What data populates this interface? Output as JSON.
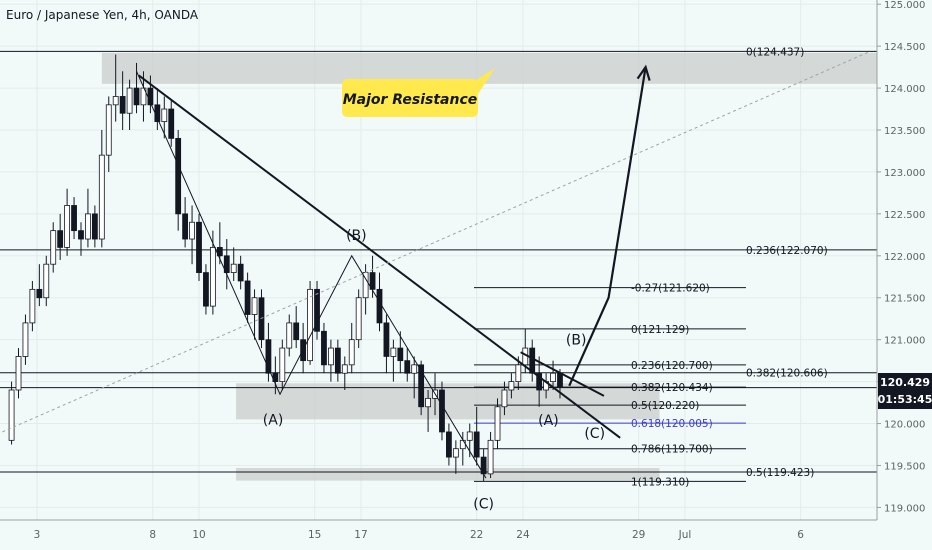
{
  "header": {
    "title": "Euro / Japanese Yen, 4h, OANDA"
  },
  "price_badge": {
    "price": "120.429",
    "countdown": "01:53:45",
    "color": "#131722"
  },
  "callout": {
    "text": "Major Resistance",
    "bg": "#ffe94d"
  },
  "colors": {
    "up": "#ffffff",
    "down": "#131722",
    "zone": "#c9cdcc",
    "fib_highlight": "#3d3dcf"
  },
  "chart_data": {
    "type": "candlestick",
    "instrument": "EURJPY",
    "timeframe": "4h",
    "source": "OANDA",
    "y_axis": {
      "ticks": [
        "125.000",
        "124.500",
        "124.000",
        "123.500",
        "123.000",
        "122.500",
        "122.000",
        "121.500",
        "121.000",
        "120.500",
        "120.000",
        "119.500",
        "119.000"
      ],
      "ylim": [
        118.85,
        125.05
      ]
    },
    "x_axis": {
      "labels": [
        {
          "label": "3",
          "day": 3
        },
        {
          "label": "8",
          "day": 8
        },
        {
          "label": "10",
          "day": 10
        },
        {
          "label": "15",
          "day": 15
        },
        {
          "label": "17",
          "day": 17
        },
        {
          "label": "22",
          "day": 22
        },
        {
          "label": "24",
          "day": 24
        },
        {
          "label": "29",
          "day": 29
        },
        {
          "label": "Jul",
          "day": 31
        },
        {
          "label": "6",
          "day": 36
        }
      ],
      "xlim": [
        1.4,
        39.3
      ]
    },
    "candles": [
      [
        1.9,
        119.8,
        120.5,
        119.75,
        120.4
      ],
      [
        2.2,
        120.4,
        120.9,
        120.3,
        120.8
      ],
      [
        2.5,
        120.8,
        121.3,
        120.7,
        121.2
      ],
      [
        2.8,
        121.2,
        121.7,
        121.1,
        121.6
      ],
      [
        3.1,
        121.6,
        121.9,
        121.4,
        121.5
      ],
      [
        3.4,
        121.5,
        122.0,
        121.4,
        121.9
      ],
      [
        3.7,
        121.9,
        122.4,
        121.8,
        122.3
      ],
      [
        4.0,
        122.3,
        122.5,
        121.95,
        122.1
      ],
      [
        4.3,
        122.1,
        122.8,
        122.0,
        122.6
      ],
      [
        4.6,
        122.6,
        122.7,
        122.2,
        122.3
      ],
      [
        4.9,
        122.3,
        122.4,
        122.0,
        122.2
      ],
      [
        5.2,
        122.2,
        122.8,
        122.1,
        122.5
      ],
      [
        5.5,
        122.5,
        122.6,
        122.1,
        122.2
      ],
      [
        5.8,
        122.2,
        123.5,
        122.1,
        123.2
      ],
      [
        6.1,
        123.2,
        123.9,
        123.0,
        123.8
      ],
      [
        6.4,
        123.8,
        124.4,
        123.6,
        123.9
      ],
      [
        6.7,
        123.9,
        124.2,
        123.5,
        123.7
      ],
      [
        7.0,
        123.7,
        124.1,
        123.5,
        124.0
      ],
      [
        7.3,
        124.0,
        124.3,
        123.7,
        123.8
      ],
      [
        7.6,
        123.8,
        124.2,
        123.6,
        124.0
      ],
      [
        7.9,
        124.0,
        124.15,
        123.7,
        123.8
      ],
      [
        8.2,
        123.8,
        124.0,
        123.5,
        123.6
      ],
      [
        8.5,
        123.6,
        123.9,
        123.4,
        123.75
      ],
      [
        8.8,
        123.75,
        123.85,
        123.3,
        123.4
      ],
      [
        9.1,
        123.4,
        123.5,
        122.3,
        122.5
      ],
      [
        9.4,
        122.5,
        122.7,
        122.1,
        122.2
      ],
      [
        9.7,
        122.2,
        122.6,
        121.9,
        122.4
      ],
      [
        10.0,
        122.4,
        122.5,
        121.7,
        121.8
      ],
      [
        10.3,
        121.8,
        121.9,
        121.3,
        121.4
      ],
      [
        10.6,
        121.4,
        122.3,
        121.3,
        122.1
      ],
      [
        10.9,
        122.1,
        122.4,
        121.9,
        122.0
      ],
      [
        11.2,
        122.0,
        122.2,
        121.6,
        121.8
      ],
      [
        11.5,
        121.8,
        122.1,
        121.7,
        121.9
      ],
      [
        11.8,
        121.9,
        122.0,
        121.6,
        121.7
      ],
      [
        12.1,
        121.7,
        121.8,
        121.2,
        121.3
      ],
      [
        12.4,
        121.3,
        121.6,
        121.0,
        121.5
      ],
      [
        12.7,
        121.5,
        121.6,
        120.9,
        121.0
      ],
      [
        13.0,
        121.0,
        121.2,
        120.5,
        120.6
      ],
      [
        13.3,
        120.6,
        120.8,
        120.35,
        120.5
      ],
      [
        13.6,
        120.5,
        121.0,
        120.4,
        120.9
      ],
      [
        13.9,
        120.9,
        121.3,
        120.8,
        121.2
      ],
      [
        14.2,
        121.2,
        121.4,
        120.9,
        121.0
      ],
      [
        14.5,
        121.0,
        121.2,
        120.6,
        120.75
      ],
      [
        14.8,
        120.75,
        121.7,
        120.7,
        121.6
      ],
      [
        15.1,
        121.6,
        121.7,
        121.0,
        121.1
      ],
      [
        15.4,
        121.1,
        121.2,
        120.6,
        120.7
      ],
      [
        15.7,
        120.7,
        121.0,
        120.5,
        120.9
      ],
      [
        16.0,
        120.9,
        121.0,
        120.5,
        120.6
      ],
      [
        16.3,
        120.6,
        120.8,
        120.4,
        120.7
      ],
      [
        16.6,
        120.7,
        121.2,
        120.6,
        121.0
      ],
      [
        16.9,
        121.0,
        121.6,
        120.9,
        121.5
      ],
      [
        17.2,
        121.5,
        121.9,
        121.3,
        121.8
      ],
      [
        17.5,
        121.8,
        122.0,
        121.5,
        121.6
      ],
      [
        17.8,
        121.6,
        121.8,
        121.1,
        121.2
      ],
      [
        18.1,
        121.2,
        121.3,
        120.6,
        120.8
      ],
      [
        18.4,
        120.8,
        121.0,
        120.5,
        120.9
      ],
      [
        18.7,
        120.9,
        121.1,
        120.6,
        120.75
      ],
      [
        19.0,
        120.75,
        120.9,
        120.5,
        120.6
      ],
      [
        19.3,
        120.6,
        120.8,
        120.3,
        120.7
      ],
      [
        19.6,
        120.7,
        120.75,
        120.1,
        120.2
      ],
      [
        19.9,
        120.2,
        120.4,
        119.9,
        120.3
      ],
      [
        20.2,
        120.3,
        120.6,
        120.1,
        120.4
      ],
      [
        20.5,
        120.4,
        120.5,
        119.8,
        119.9
      ],
      [
        20.8,
        119.9,
        120.0,
        119.5,
        119.6
      ],
      [
        21.1,
        119.6,
        119.8,
        119.4,
        119.7
      ],
      [
        21.4,
        119.7,
        119.9,
        119.5,
        119.8
      ],
      [
        21.7,
        119.8,
        120.0,
        119.6,
        119.9
      ],
      [
        22.0,
        119.9,
        120.2,
        119.5,
        119.6
      ],
      [
        22.3,
        119.6,
        119.7,
        119.31,
        119.4
      ],
      [
        22.6,
        119.4,
        119.9,
        119.35,
        119.8
      ],
      [
        22.9,
        119.8,
        120.3,
        119.7,
        120.2
      ],
      [
        23.2,
        120.2,
        120.5,
        120.1,
        120.4
      ],
      [
        23.5,
        120.4,
        120.6,
        120.3,
        120.5
      ],
      [
        23.8,
        120.5,
        120.8,
        120.4,
        120.7
      ],
      [
        24.1,
        120.7,
        121.13,
        120.6,
        120.9
      ],
      [
        24.4,
        120.9,
        121.0,
        120.5,
        120.6
      ],
      [
        24.7,
        120.6,
        120.8,
        120.2,
        120.4
      ],
      [
        25.0,
        120.4,
        120.6,
        120.3,
        120.5
      ],
      [
        25.3,
        120.5,
        120.75,
        120.4,
        120.6
      ],
      [
        25.6,
        120.6,
        120.65,
        120.3,
        120.43
      ]
    ],
    "horizontal_lines": [
      {
        "price": 124.437,
        "label": "0(124.437)"
      },
      {
        "price": 122.07,
        "label": "0.236(122.070)"
      },
      {
        "price": 120.606,
        "label": "0.382(120.606)"
      },
      {
        "price": 120.429,
        "label": ""
      },
      {
        "price": 119.423,
        "label": "0.5(119.423)"
      }
    ],
    "fib_levels": [
      {
        "ratio": "-0.27",
        "price": 121.62,
        "label": "-0.27(121.620)"
      },
      {
        "ratio": "0",
        "price": 121.129,
        "label": "0(121.129)"
      },
      {
        "ratio": "0.236",
        "price": 120.7,
        "label": "0.236(120.700)"
      },
      {
        "ratio": "0.382",
        "price": 120.434,
        "label": "0.382(120.434)"
      },
      {
        "ratio": "0.5",
        "price": 120.22,
        "label": "0.5(120.220)"
      },
      {
        "ratio": "0.618",
        "price": 120.005,
        "label": "0.618(120.005)",
        "highlight": true
      },
      {
        "ratio": "0.786",
        "price": 119.7,
        "label": "0.786(119.700)"
      },
      {
        "ratio": "1",
        "price": 119.31,
        "label": "1(119.310)"
      }
    ],
    "zones": [
      {
        "name": "major-resistance",
        "x0": 5.8,
        "x1": 39.3,
        "y0": 124.05,
        "y1": 124.42
      },
      {
        "name": "support-zone",
        "x0": 11.6,
        "x1": 29.9,
        "y0": 120.05,
        "y1": 120.48
      },
      {
        "name": "low-zone",
        "x0": 11.6,
        "x1": 29.9,
        "y0": 119.32,
        "y1": 119.47
      }
    ],
    "trendlines": [
      {
        "name": "main-downtrend",
        "points": [
          [
            7.4,
            124.15
          ],
          [
            28.2,
            119.83
          ]
        ],
        "width": 2
      },
      {
        "name": "channel-top",
        "points": [
          [
            23.9,
            120.85
          ],
          [
            27.5,
            120.33
          ]
        ],
        "width": 2
      },
      {
        "name": "wave-path",
        "points": [
          [
            7.3,
            124.2
          ],
          [
            13.5,
            120.35
          ],
          [
            16.6,
            122.0
          ],
          [
            22.4,
            119.35
          ]
        ],
        "width": 1
      },
      {
        "name": "fib-extension-dashed",
        "points": [
          [
            1.5,
            119.9
          ],
          [
            39.0,
            124.437
          ]
        ],
        "width": 1,
        "dashed": true
      }
    ],
    "projection": {
      "points": [
        [
          26.0,
          120.45
        ],
        [
          27.7,
          121.5
        ],
        [
          29.3,
          124.25
        ]
      ]
    },
    "wave_labels": [
      {
        "text": "(B)",
        "x": 16.8,
        "y": 122.19
      },
      {
        "text": "(A)",
        "x": 13.2,
        "y": 119.99
      },
      {
        "text": "(C)",
        "x": 22.3,
        "y": 118.99
      },
      {
        "text": "(B)",
        "x": 26.3,
        "y": 120.94
      },
      {
        "text": "(A)",
        "x": 25.1,
        "y": 119.98
      },
      {
        "text": "(C)",
        "x": 27.1,
        "y": 119.83
      }
    ]
  }
}
